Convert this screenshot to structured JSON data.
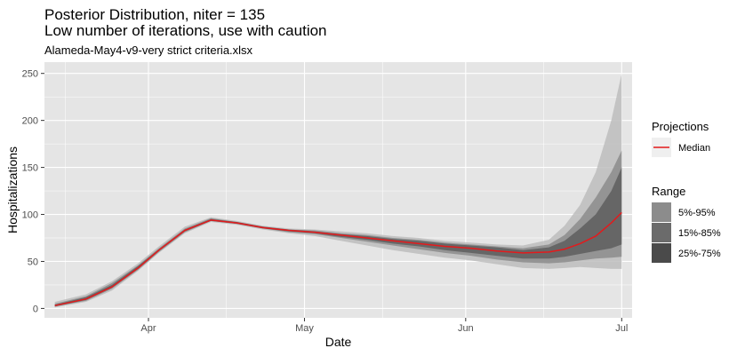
{
  "chart_data": {
    "type": "area",
    "title": "Posterior Distribution, niter = 135",
    "title_line2": "Low number of iterations, use with caution",
    "subtitle": "Alameda-May4-v9-very strict criteria.xlsx",
    "xlabel": "Date",
    "ylabel": "Hospitalizations",
    "xlim": [
      "2020-03-12",
      "2020-07-03"
    ],
    "ylim": [
      -10,
      262
    ],
    "x_ticks": [
      {
        "date": "2020-04-01",
        "label": "Apr"
      },
      {
        "date": "2020-05-01",
        "label": "May"
      },
      {
        "date": "2020-06-01",
        "label": "Jun"
      },
      {
        "date": "2020-07-01",
        "label": "Jul"
      }
    ],
    "x_minor_ticks": [
      "2020-03-16",
      "2020-04-16",
      "2020-05-16",
      "2020-06-16"
    ],
    "y_ticks": [
      0,
      50,
      100,
      150,
      200,
      250
    ],
    "grid": true,
    "legend_position": "right",
    "legend": {
      "projections_title": "Projections",
      "median_label": "Median",
      "range_title": "Range",
      "range_labels": [
        "5%-95%",
        "15%-85%",
        "25%-75%"
      ]
    },
    "colors": {
      "panel": "#e5e5e5",
      "grid": "#ffffff",
      "median": "#e41a1c",
      "band_5_95": "#bdbdbd",
      "band_15_85": "#8c8c8c",
      "band_25_75": "#5e5e5e"
    },
    "x": [
      "2020-03-14",
      "2020-03-20",
      "2020-03-25",
      "2020-03-30",
      "2020-04-03",
      "2020-04-08",
      "2020-04-13",
      "2020-04-18",
      "2020-04-23",
      "2020-04-28",
      "2020-05-03",
      "2020-05-08",
      "2020-05-13",
      "2020-05-18",
      "2020-05-23",
      "2020-05-28",
      "2020-06-02",
      "2020-06-07",
      "2020-06-12",
      "2020-06-17",
      "2020-06-20",
      "2020-06-23",
      "2020-06-26",
      "2020-06-29",
      "2020-07-01"
    ],
    "median": [
      3,
      10,
      23,
      43,
      62,
      83,
      94,
      91,
      86,
      83,
      81,
      78,
      75,
      72,
      69,
      66,
      64,
      61,
      59,
      60,
      63,
      69,
      77,
      91,
      102
    ],
    "bands": [
      {
        "name": "5%-95%",
        "lower": [
          1,
          7,
          19,
          40,
          59,
          80,
          92,
          89,
          84,
          80,
          77,
          72,
          67,
          62,
          58,
          54,
          51,
          47,
          43,
          42,
          43,
          44,
          43,
          42,
          42
        ],
        "upper": [
          7,
          15,
          29,
          48,
          66,
          87,
          97,
          93,
          88,
          85,
          84,
          82,
          80,
          77,
          75,
          72,
          70,
          68,
          67,
          73,
          88,
          110,
          145,
          200,
          250
        ]
      },
      {
        "name": "15%-85%",
        "lower": [
          2,
          8,
          21,
          41,
          60,
          81,
          93,
          90,
          85,
          81,
          79,
          75,
          71,
          67,
          63,
          59,
          56,
          52,
          49,
          48,
          49,
          51,
          53,
          54,
          55
        ],
        "upper": [
          5,
          13,
          27,
          46,
          64,
          85,
          96,
          92,
          87,
          84,
          83,
          80,
          78,
          75,
          73,
          70,
          68,
          66,
          64,
          68,
          78,
          95,
          118,
          145,
          168
        ]
      },
      {
        "name": "25%-75%",
        "lower": [
          2,
          9,
          22,
          42,
          61,
          82,
          93,
          90,
          85,
          82,
          80,
          76,
          73,
          69,
          66,
          62,
          59,
          56,
          53,
          53,
          55,
          58,
          61,
          64,
          68
        ],
        "upper": [
          4,
          12,
          25,
          45,
          63,
          84,
          95,
          92,
          87,
          84,
          82,
          79,
          77,
          74,
          72,
          69,
          67,
          65,
          62,
          65,
          72,
          85,
          100,
          125,
          150
        ]
      }
    ]
  }
}
